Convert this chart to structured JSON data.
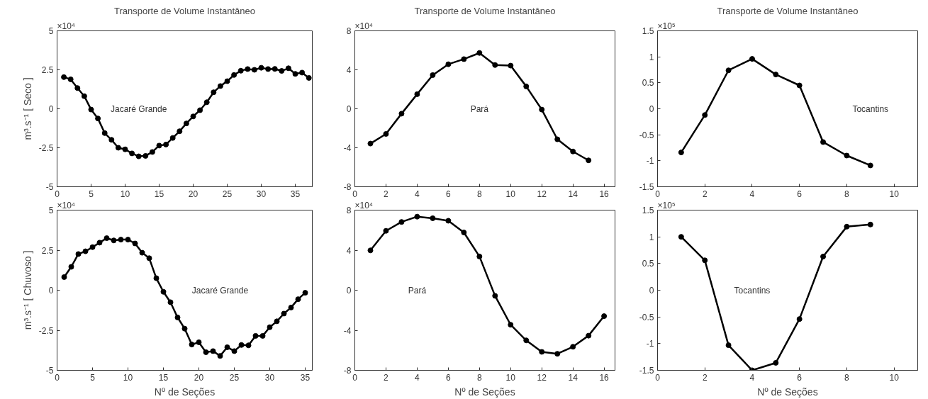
{
  "chart_data": [
    {
      "type": "line",
      "title": "Transporte de Volume Instantâneo",
      "ylabel": "m³.s⁻¹ [ Seco ]",
      "annotations": [
        "×10⁴"
      ],
      "marker": "circle",
      "grid": false,
      "xlim": [
        0,
        37.5
      ],
      "ylim": [
        -5,
        5
      ],
      "xticks": [
        0,
        5,
        10,
        15,
        20,
        25,
        30,
        35
      ],
      "yticks": [
        -5,
        -2.5,
        0,
        2.5,
        5
      ],
      "x": [
        1,
        2,
        3,
        4,
        5,
        6,
        7,
        8,
        9,
        10,
        11,
        12,
        13,
        14,
        15,
        16,
        17,
        18,
        19,
        20,
        21,
        22,
        23,
        24,
        25,
        26,
        27,
        28,
        29,
        30,
        31,
        32,
        33,
        34,
        35,
        36,
        37
      ],
      "series": [
        {
          "name": "Jacaré Grande",
          "color": "#000000",
          "values": [
            2.03,
            1.89,
            1.33,
            0.81,
            -0.05,
            -0.62,
            -1.56,
            -1.99,
            -2.5,
            -2.6,
            -2.86,
            -3.05,
            -3.02,
            -2.77,
            -2.36,
            -2.29,
            -1.87,
            -1.44,
            -0.94,
            -0.49,
            -0.09,
            0.42,
            1.06,
            1.46,
            1.77,
            2.17,
            2.44,
            2.55,
            2.5,
            2.63,
            2.55,
            2.56,
            2.43,
            2.6,
            2.24,
            2.32,
            1.98
          ]
        }
      ]
    },
    {
      "type": "line",
      "title": "Transporte de Volume Instantâneo",
      "annotations": [
        "×10⁴"
      ],
      "marker": "circle",
      "grid": false,
      "xlim": [
        0,
        16.7
      ],
      "ylim": [
        -8,
        8
      ],
      "xticks": [
        0,
        2,
        4,
        6,
        8,
        10,
        12,
        14,
        16
      ],
      "yticks": [
        -8,
        -4,
        0,
        4,
        8
      ],
      "x": [
        1,
        2,
        3,
        4,
        5,
        6,
        7,
        8,
        9,
        10,
        11,
        12,
        13,
        14,
        15
      ],
      "series": [
        {
          "name": "Pará",
          "color": "#000000",
          "values": [
            -3.57,
            -2.58,
            -0.5,
            1.5,
            3.46,
            4.57,
            5.1,
            5.73,
            4.49,
            4.43,
            2.3,
            -0.08,
            -3.13,
            -4.38,
            -5.29
          ]
        }
      ]
    },
    {
      "type": "line",
      "title": "Transporte de Volume Instantâneo",
      "annotations": [
        "×10⁵"
      ],
      "marker": "circle",
      "grid": false,
      "xlim": [
        0,
        11
      ],
      "ylim": [
        -1.5,
        1.5
      ],
      "xticks": [
        0,
        2,
        4,
        6,
        8,
        10
      ],
      "yticks": [
        -1.5,
        -1,
        -0.5,
        0,
        0.5,
        1,
        1.5
      ],
      "x": [
        1,
        2,
        3,
        4,
        5,
        6,
        7,
        8,
        9
      ],
      "series": [
        {
          "name": "Tocantins",
          "color": "#000000",
          "values": [
            -0.84,
            -0.12,
            0.74,
            0.96,
            0.66,
            0.45,
            -0.64,
            -0.9,
            -1.09
          ]
        }
      ]
    },
    {
      "type": "line",
      "xlabel": "Nº de Seções",
      "ylabel": "m³.s⁻¹ [ Chuvoso ]",
      "annotations": [
        "×10⁴"
      ],
      "marker": "circle",
      "grid": false,
      "xlim": [
        0,
        36
      ],
      "ylim": [
        -5,
        5
      ],
      "xticks": [
        0,
        5,
        10,
        15,
        20,
        25,
        30,
        35
      ],
      "yticks": [
        -5,
        -2.5,
        0,
        2.5,
        5
      ],
      "x": [
        1,
        2,
        3,
        4,
        5,
        6,
        7,
        8,
        9,
        10,
        11,
        12,
        13,
        14,
        15,
        16,
        17,
        18,
        19,
        20,
        21,
        22,
        23,
        24,
        25,
        26,
        27,
        28,
        29,
        30,
        31,
        32,
        33,
        34,
        35
      ],
      "series": [
        {
          "name": "Jacaré Grande",
          "color": "#000000",
          "values": [
            0.82,
            1.46,
            2.26,
            2.43,
            2.69,
            2.97,
            3.25,
            3.11,
            3.16,
            3.16,
            2.92,
            2.34,
            2.0,
            0.75,
            -0.1,
            -0.75,
            -1.7,
            -2.4,
            -3.39,
            -3.25,
            -3.87,
            -3.8,
            -4.1,
            -3.56,
            -3.8,
            -3.42,
            -3.44,
            -2.85,
            -2.85,
            -2.31,
            -1.94,
            -1.46,
            -1.08,
            -0.56,
            -0.16
          ]
        }
      ]
    },
    {
      "type": "line",
      "xlabel": "Nº de Seções",
      "annotations": [
        "×10⁴"
      ],
      "marker": "circle",
      "grid": false,
      "xlim": [
        0,
        16.7
      ],
      "ylim": [
        -8,
        8
      ],
      "xticks": [
        0,
        2,
        4,
        6,
        8,
        10,
        12,
        14,
        16
      ],
      "yticks": [
        -8,
        -4,
        0,
        4,
        8
      ],
      "x": [
        1,
        2,
        3,
        4,
        5,
        6,
        7,
        8,
        9,
        10,
        11,
        12,
        13,
        14,
        15,
        16
      ],
      "series": [
        {
          "name": "Pará",
          "color": "#000000",
          "values": [
            3.98,
            5.93,
            6.82,
            7.35,
            7.19,
            6.94,
            5.77,
            3.37,
            -0.56,
            -3.45,
            -5.01,
            -6.16,
            -6.35,
            -5.65,
            -4.54,
            -2.59
          ]
        }
      ]
    },
    {
      "type": "line",
      "xlabel": "Nº de Seções",
      "annotations": [
        "×10⁵"
      ],
      "marker": "circle",
      "grid": false,
      "xlim": [
        0,
        11
      ],
      "ylim": [
        -1.5,
        1.5
      ],
      "xticks": [
        0,
        2,
        4,
        6,
        8,
        10
      ],
      "yticks": [
        -1.5,
        -1,
        -0.5,
        0,
        0.5,
        1,
        1.5
      ],
      "x": [
        1,
        2,
        3,
        4,
        5,
        6,
        7,
        8,
        9
      ],
      "series": [
        {
          "name": "Tocantins",
          "color": "#000000",
          "values": [
            1.0,
            0.56,
            -1.03,
            -1.5,
            -1.36,
            -0.54,
            0.63,
            1.19,
            1.23
          ]
        }
      ]
    }
  ]
}
